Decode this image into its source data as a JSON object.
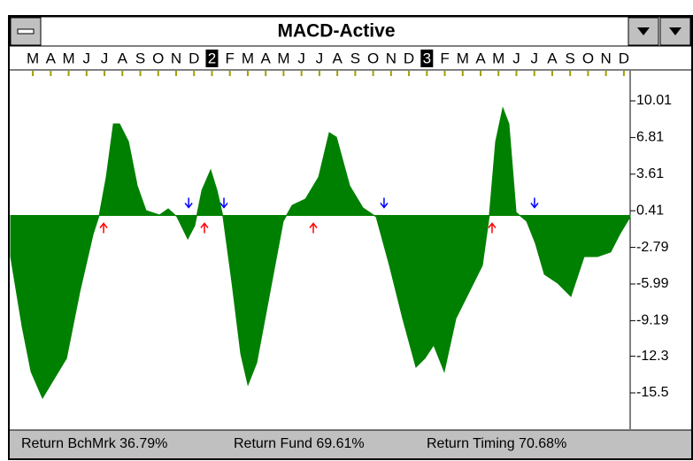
{
  "chart_data": {
    "type": "area",
    "title": "MACD-Active",
    "categories": [
      "M",
      "A",
      "M",
      "J",
      "J",
      "A",
      "S",
      "O",
      "N",
      "D",
      "2",
      "F",
      "M",
      "A",
      "M",
      "J",
      "J",
      "A",
      "S",
      "O",
      "N",
      "D",
      "3",
      "F",
      "M",
      "A",
      "M",
      "J",
      "J",
      "A",
      "S",
      "O",
      "N",
      "D"
    ],
    "x": [
      -1.24,
      -0.59,
      -0.1,
      0.54,
      1.14,
      1.88,
      2.62,
      3.36,
      3.71,
      4.1,
      4.5,
      4.84,
      5.34,
      5.83,
      6.32,
      7.07,
      7.56,
      8.05,
      8.65,
      9.04,
      9.44,
      9.93,
      10.28,
      10.62,
      11.12,
      11.61,
      12.01,
      12.5,
      13.24,
      13.98,
      14.48,
      15.22,
      15.96,
      16.55,
      16.95,
      17.69,
      18.43,
      19.17,
      19.91,
      20.65,
      21.39,
      21.89,
      22.38,
      22.97,
      23.62,
      24.36,
      25.1,
      25.49,
      25.84,
      26.24,
      26.58,
      26.98,
      27.57,
      28.06,
      28.56,
      29.3,
      30.04,
      30.78,
      31.52,
      32.26,
      32.76,
      33.35
    ],
    "values": [
      -3.59,
      -9.77,
      -13.64,
      -15.96,
      -14.4,
      -12.48,
      -6.68,
      -1.66,
      0.04,
      3.36,
      8.0,
      8.0,
      6.45,
      2.59,
      0.43,
      0.04,
      0.58,
      -0.12,
      -2.05,
      -0.89,
      2.2,
      3.98,
      2.2,
      -0.12,
      -5.91,
      -12.09,
      -14.8,
      -12.86,
      -6.68,
      -0.5,
      0.89,
      1.43,
      3.36,
      7.23,
      6.84,
      2.59,
      0.66,
      -0.12,
      -4.36,
      -9.0,
      -13.25,
      -12.48,
      -11.32,
      -13.64,
      -9.0,
      -6.68,
      -4.36,
      0.04,
      6.45,
      9.39,
      8.0,
      0.27,
      -0.5,
      -2.43,
      -5.14,
      -5.91,
      -7.07,
      -3.59,
      -3.59,
      -3.2,
      -1.66,
      -0.12
    ],
    "color": "#008000",
    "buy_signals": [
      3.95,
      9.58,
      15.66,
      25.64
    ],
    "sell_signals": [
      8.7,
      10.67,
      19.61,
      28.01
    ],
    "buy_color": "#ff0000",
    "sell_color": "#0000ff",
    "xlim": [
      -1.24,
      33.35
    ],
    "ylim": [
      -18.67,
      12.64
    ],
    "yticks": [
      10.01,
      6.81,
      3.61,
      0.41,
      -2.79,
      -5.99,
      -9.19,
      -12.3,
      -15.5
    ],
    "status": [
      "Return BchMrk 36.79%",
      "Return Fund 69.61%",
      "Return Timing 70.68%"
    ]
  }
}
